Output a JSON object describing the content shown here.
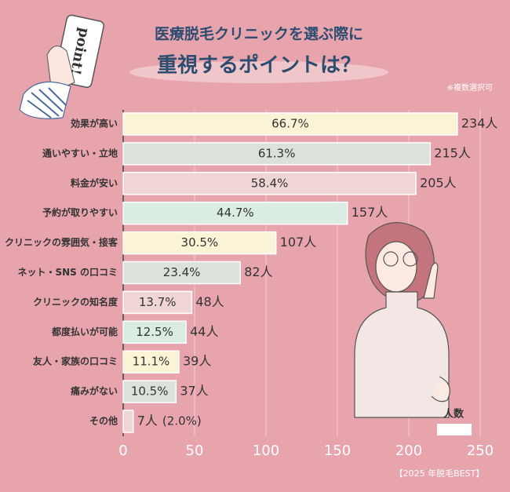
{
  "chart_data": {
    "type": "bar",
    "orientation": "horizontal",
    "title": "医療脱毛クリニックを選ぶ際に",
    "subtitle": "重視するポイントは？",
    "note": "※複数選択可",
    "badge": "point!",
    "footer": "【2025 年脱毛BEST】",
    "categories": [
      "効果が高い",
      "通いやすい・立地",
      "料金が安い",
      "予約が取りやすい",
      "クリニックの雰囲気・接客",
      "ネット・SNS の口コミ",
      "クリニックの知名度",
      "都度払いが可能",
      "友人・家族の口コミ",
      "痛みがない",
      "その他"
    ],
    "series": [
      {
        "name": "人数",
        "color": "#ffffff",
        "values": [
          234,
          215,
          205,
          157,
          107,
          82,
          48,
          44,
          39,
          37,
          7
        ],
        "value_labels": [
          "234人",
          "215人",
          "205人",
          "157人",
          "107人",
          "82人",
          "48人",
          "44人",
          "39人",
          "37人",
          "7人"
        ],
        "share_labels": [
          "66.7%",
          "61.3%",
          "58.4%",
          "44.7%",
          "30.5%",
          "23.4%",
          "13.7%",
          "12.5%",
          "11.1%",
          "10.5%",
          "(2.0%)"
        ],
        "colors": [
          "#fbf3d6",
          "#dde1dc",
          "#efd6d4",
          "#dbece2",
          "#fbf3d6",
          "#dde1dc",
          "#efd6d4",
          "#dbece2",
          "#fbf3d6",
          "#dde1dc",
          "#efd6d4"
        ]
      }
    ],
    "xlim": [
      0,
      250
    ],
    "xticks": [
      0,
      50,
      100,
      150,
      200,
      250
    ],
    "grid": true
  }
}
